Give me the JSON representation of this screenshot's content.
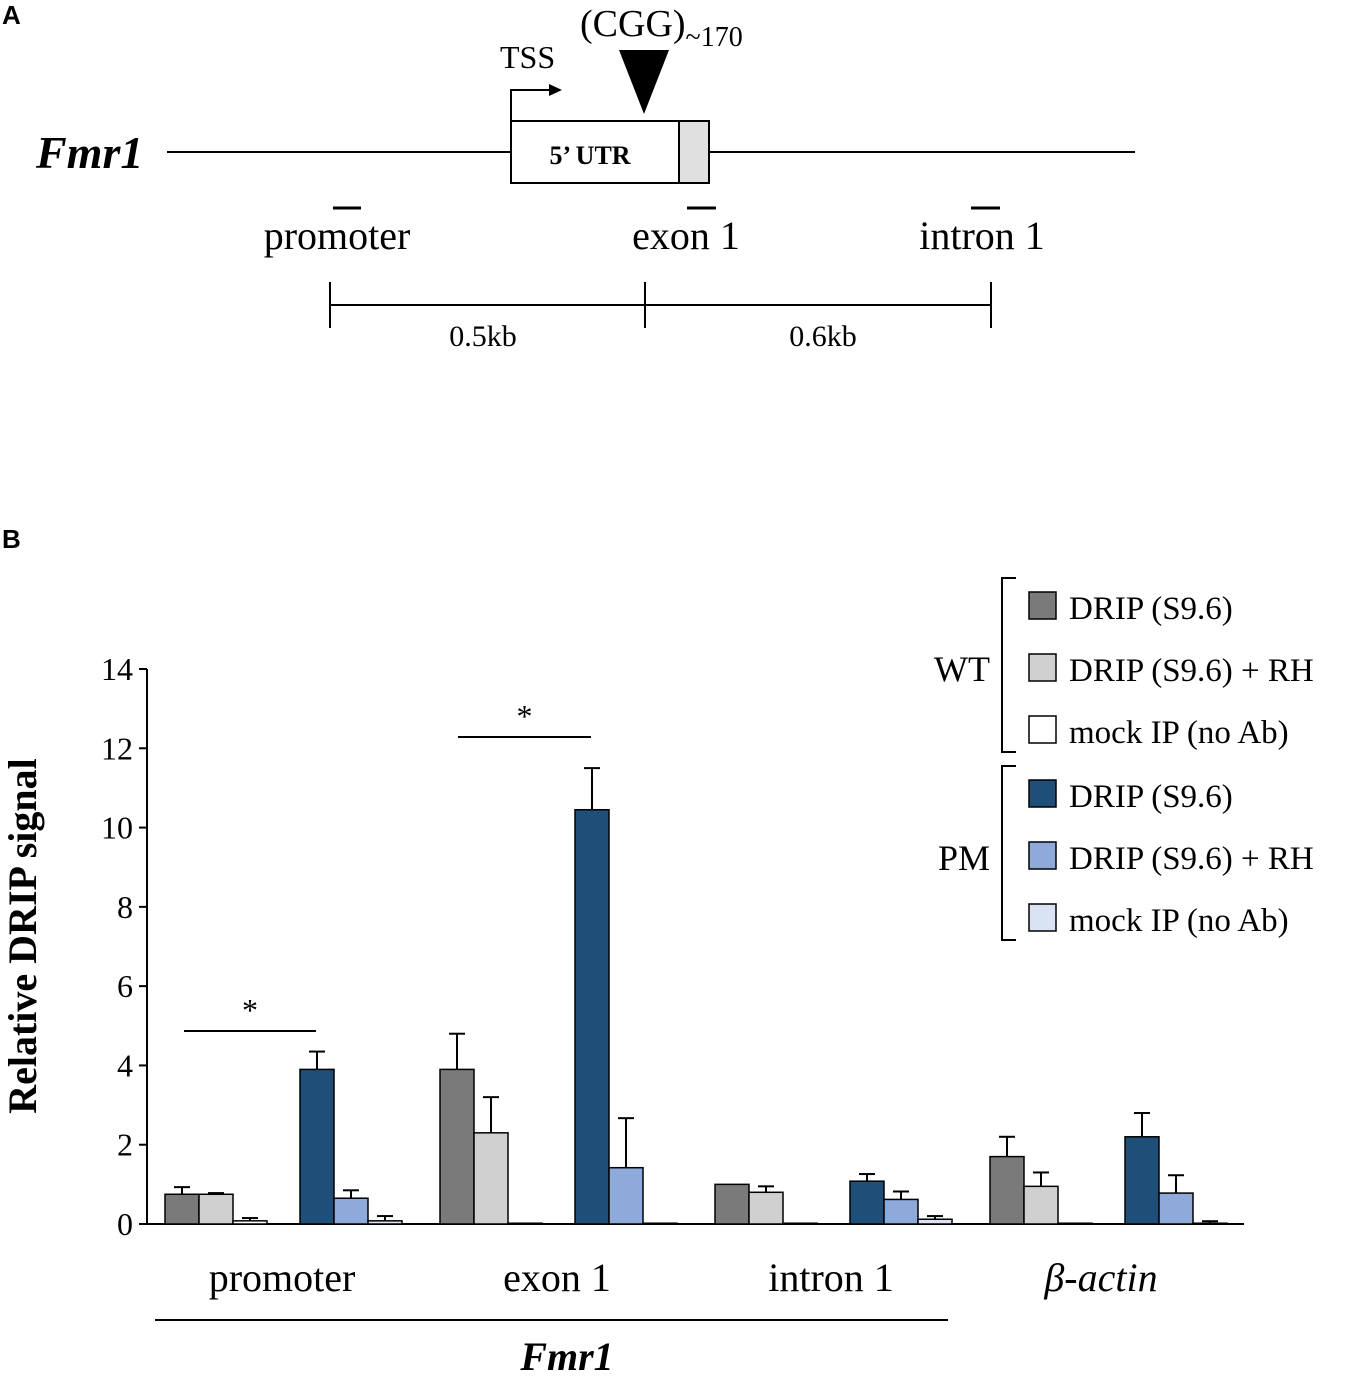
{
  "panel_a": {
    "label": "A",
    "gene": "Fmr1",
    "tss": "TSS",
    "repeat": "(CGG)",
    "repeat_count": "~170",
    "utr": "5’ UTR",
    "regions": [
      "promoter",
      "exon 1",
      "intron 1"
    ],
    "distances": [
      "0.5kb",
      "0.6kb"
    ]
  },
  "panel_b": {
    "label": "B",
    "gene_label": "Fmr1"
  },
  "colors": {
    "wt_drip": "#7a7a7a",
    "wt_rh": "#d0d0d0",
    "wt_mock": "#ffffff",
    "pm_drip": "#1f4e79",
    "pm_rh": "#8eaadb",
    "pm_mock": "#dae3f3"
  },
  "chart_data": {
    "type": "bar",
    "ylabel": "Relative DRIP signal",
    "xlabel": "",
    "ylim": [
      0,
      14
    ],
    "yticks": [
      0,
      2,
      4,
      6,
      8,
      10,
      12,
      14
    ],
    "categories": [
      "promoter",
      "exon 1",
      "intron 1",
      "β-actin"
    ],
    "groups": [
      {
        "name": "WT",
        "series": [
          {
            "name": "DRIP (S9.6)",
            "color": "#7a7a7a",
            "values": [
              0.75,
              3.9,
              1.0,
              1.7
            ],
            "errors": [
              0.18,
              0.9,
              0.0,
              0.5
            ]
          },
          {
            "name": "DRIP (S9.6) + RH",
            "color": "#d0d0d0",
            "values": [
              0.75,
              2.3,
              0.8,
              0.95
            ],
            "errors": [
              0.03,
              0.9,
              0.15,
              0.35
            ]
          },
          {
            "name": "mock IP (no Ab)",
            "color": "#ffffff",
            "values": [
              0.08,
              0.02,
              0.02,
              0.02
            ],
            "errors": [
              0.07,
              0.0,
              0.0,
              0.0
            ]
          }
        ]
      },
      {
        "name": "PM",
        "series": [
          {
            "name": "DRIP (S9.6)",
            "color": "#1f4e79",
            "values": [
              3.9,
              10.45,
              1.08,
              2.2
            ],
            "errors": [
              0.45,
              1.05,
              0.18,
              0.6
            ]
          },
          {
            "name": "DRIP (S9.6) + RH",
            "color": "#8eaadb",
            "values": [
              0.65,
              1.42,
              0.62,
              0.78
            ],
            "errors": [
              0.2,
              1.25,
              0.2,
              0.45
            ]
          },
          {
            "name": "mock IP (no Ab)",
            "color": "#dae3f3",
            "values": [
              0.08,
              0.02,
              0.12,
              0.02
            ],
            "errors": [
              0.12,
              0.0,
              0.08,
              0.05
            ]
          }
        ]
      }
    ],
    "significance": [
      {
        "category": "promoter",
        "label": "*"
      },
      {
        "category": "exon 1",
        "label": "*"
      }
    ]
  }
}
